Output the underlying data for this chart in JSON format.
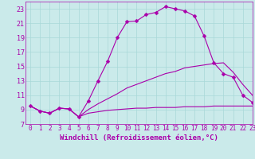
{
  "xlabel": "Windchill (Refroidissement éolien,°C)",
  "bg_color": "#caeaea",
  "grid_color": "#a8d8d8",
  "line_color": "#aa00aa",
  "line1_x": [
    0,
    1,
    2,
    3,
    4,
    5,
    6,
    7,
    8,
    9,
    10,
    11,
    12,
    13,
    14,
    15,
    16,
    17,
    18,
    19,
    20,
    21,
    22,
    23
  ],
  "line1_y": [
    9.5,
    8.8,
    8.5,
    9.2,
    9.1,
    8.0,
    10.2,
    13.0,
    15.7,
    19.0,
    21.2,
    21.3,
    22.2,
    22.5,
    23.3,
    23.0,
    22.7,
    22.0,
    19.2,
    15.5,
    14.0,
    13.5,
    11.0,
    10.0
  ],
  "line2_x": [
    0,
    1,
    2,
    3,
    4,
    5,
    6,
    7,
    8,
    9,
    10,
    11,
    12,
    13,
    14,
    15,
    16,
    17,
    18,
    19,
    20,
    21,
    22,
    23
  ],
  "line2_y": [
    9.5,
    8.8,
    8.5,
    9.2,
    9.1,
    8.0,
    9.0,
    9.8,
    10.5,
    11.2,
    12.0,
    12.5,
    13.0,
    13.5,
    14.0,
    14.3,
    14.8,
    15.0,
    15.2,
    15.4,
    15.5,
    14.2,
    12.5,
    11.0
  ],
  "line3_x": [
    0,
    1,
    2,
    3,
    4,
    5,
    6,
    7,
    8,
    9,
    10,
    11,
    12,
    13,
    14,
    15,
    16,
    17,
    18,
    19,
    20,
    21,
    22,
    23
  ],
  "line3_y": [
    9.5,
    8.8,
    8.5,
    9.2,
    9.1,
    8.0,
    8.5,
    8.7,
    8.9,
    9.0,
    9.1,
    9.2,
    9.2,
    9.3,
    9.3,
    9.3,
    9.4,
    9.4,
    9.4,
    9.5,
    9.5,
    9.5,
    9.5,
    9.5
  ],
  "ylim": [
    7,
    24
  ],
  "xlim": [
    -0.5,
    23
  ],
  "yticks": [
    7,
    9,
    11,
    13,
    15,
    17,
    19,
    21,
    23
  ],
  "xticks": [
    0,
    1,
    2,
    3,
    4,
    5,
    6,
    7,
    8,
    9,
    10,
    11,
    12,
    13,
    14,
    15,
    16,
    17,
    18,
    19,
    20,
    21,
    22,
    23
  ],
  "tick_fontsize": 5.5,
  "xlabel_fontsize": 6.5,
  "marker": "D",
  "markersize": 2.5,
  "linewidth": 0.8
}
